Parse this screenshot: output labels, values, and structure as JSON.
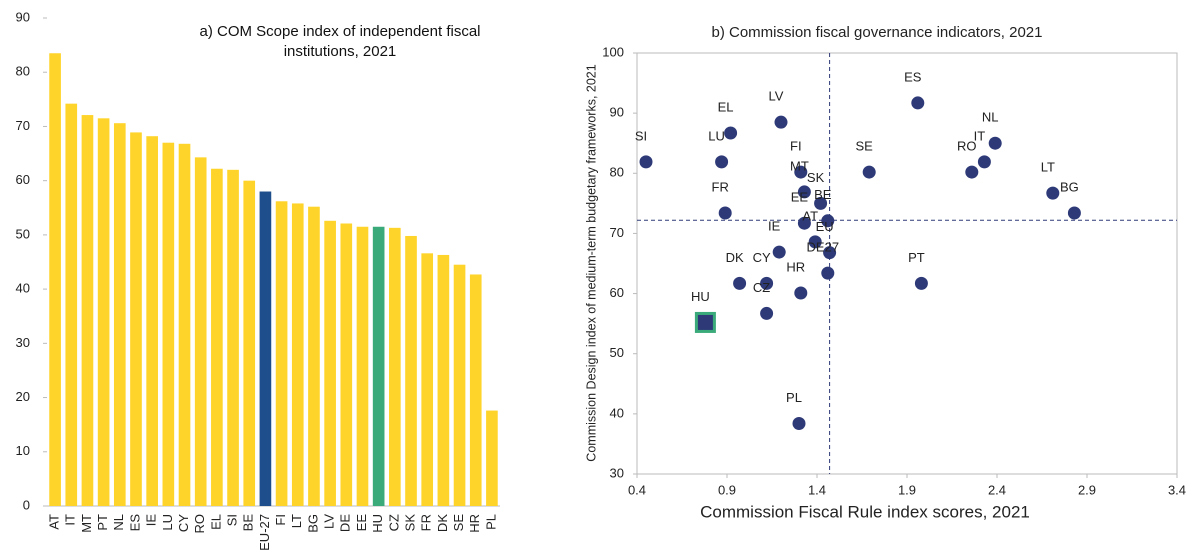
{
  "chart_data": [
    {
      "type": "bar",
      "title": "a) COM Scope index of independent fiscal institutions, 2021",
      "categories": [
        "AT",
        "IT",
        "MT",
        "PT",
        "NL",
        "ES",
        "IE",
        "LU",
        "CY",
        "RO",
        "EL",
        "SI",
        "BE",
        "EU-27",
        "FI",
        "LT",
        "BG",
        "LV",
        "DE",
        "EE",
        "HU",
        "CZ",
        "SK",
        "FR",
        "DK",
        "SE",
        "HR",
        "PL"
      ],
      "values": [
        83.5,
        74.2,
        72.1,
        71.5,
        70.6,
        68.9,
        68.2,
        67,
        66.8,
        64.3,
        62.2,
        62,
        60,
        58,
        56.2,
        55.8,
        55.2,
        52.6,
        52.1,
        51.5,
        51.5,
        51.3,
        49.8,
        46.6,
        46.3,
        44.5,
        42.7,
        17.6
      ],
      "colors": [
        "#FFD42A",
        "#FFD42A",
        "#FFD42A",
        "#FFD42A",
        "#FFD42A",
        "#FFD42A",
        "#FFD42A",
        "#FFD42A",
        "#FFD42A",
        "#FFD42A",
        "#FFD42A",
        "#FFD42A",
        "#FFD42A",
        "#1F4E8C",
        "#FFD42A",
        "#FFD42A",
        "#FFD42A",
        "#FFD42A",
        "#FFD42A",
        "#FFD42A",
        "#3BAA7A",
        "#FFD42A",
        "#FFD42A",
        "#FFD42A",
        "#FFD42A",
        "#FFD42A",
        "#FFD42A",
        "#FFD42A"
      ],
      "ylim": [
        0,
        90
      ],
      "yticks": [
        0,
        10,
        20,
        30,
        40,
        50,
        60,
        70,
        80,
        90
      ],
      "grid": false
    },
    {
      "type": "scatter",
      "title": "b) Commission fiscal governance indicators, 2021",
      "x_label": "Commission Fiscal Rule index scores, 2021",
      "y_label": "Commission Design index of medium-term budgetary frameworks, 2021",
      "color": "#2E3A78",
      "points": [
        {
          "label": "SI",
          "x": 0.45,
          "y": 81.9
        },
        {
          "label": "LU",
          "x": 0.87,
          "y": 81.9
        },
        {
          "label": "EL",
          "x": 0.92,
          "y": 86.7
        },
        {
          "label": "LV",
          "x": 1.2,
          "y": 88.5
        },
        {
          "label": "FI",
          "x": 1.31,
          "y": 80.2
        },
        {
          "label": "MT",
          "x": 1.33,
          "y": 76.9
        },
        {
          "label": "SK",
          "x": 1.42,
          "y": 75
        },
        {
          "label": "EE",
          "x": 1.33,
          "y": 71.7
        },
        {
          "label": "BE",
          "x": 1.46,
          "y": 72.1
        },
        {
          "label": "IE",
          "x": 1.19,
          "y": 66.9
        },
        {
          "label": "AT",
          "x": 1.39,
          "y": 68.6
        },
        {
          "label": "EU",
          "x": 1.47,
          "y": 66.8
        },
        {
          "label": "DE27",
          "x": 1.46,
          "y": 63.4
        },
        {
          "label": "HR",
          "x": 1.31,
          "y": 60.1
        },
        {
          "label": "DK",
          "x": 0.97,
          "y": 61.7
        },
        {
          "label": "CY",
          "x": 1.12,
          "y": 61.7
        },
        {
          "label": "CZ",
          "x": 1.12,
          "y": 56.7
        },
        {
          "label": "HU",
          "x": 0.78,
          "y": 55.2,
          "marker": "square",
          "edgecolor": "#3BAA7A"
        },
        {
          "label": "PL",
          "x": 1.3,
          "y": 38.4
        },
        {
          "label": "FR",
          "x": 0.89,
          "y": 73.4
        },
        {
          "label": "SE",
          "x": 1.69,
          "y": 80.2
        },
        {
          "label": "ES",
          "x": 1.96,
          "y": 91.7
        },
        {
          "label": "PT",
          "x": 1.98,
          "y": 61.7
        },
        {
          "label": "RO",
          "x": 2.26,
          "y": 80.2
        },
        {
          "label": "IT",
          "x": 2.33,
          "y": 81.9
        },
        {
          "label": "NL",
          "x": 2.39,
          "y": 85
        },
        {
          "label": "LT",
          "x": 2.71,
          "y": 76.7
        },
        {
          "label": "BG",
          "x": 2.83,
          "y": 73.4
        }
      ],
      "reference_lines": {
        "x": 1.47,
        "y": 72.2
      },
      "xlim": [
        0.4,
        3.4
      ],
      "xticks": [
        0.4,
        0.9,
        1.4,
        1.9,
        2.4,
        2.9,
        3.4
      ],
      "ylim": [
        30,
        100
      ],
      "yticks": [
        30,
        40,
        50,
        60,
        70,
        80,
        90,
        100
      ]
    }
  ]
}
